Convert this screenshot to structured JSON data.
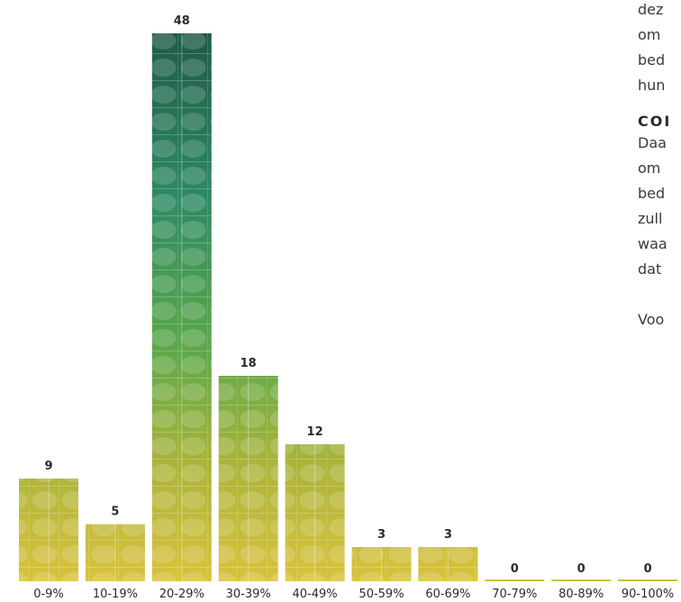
{
  "chart_data": {
    "type": "bar",
    "categories": [
      "0-9%",
      "10-19%",
      "20-29%",
      "30-39%",
      "40-49%",
      "50-59%",
      "60-69%",
      "70-79%",
      "80-89%",
      "90-100%"
    ],
    "values": [
      9,
      5,
      48,
      18,
      12,
      3,
      3,
      0,
      0,
      0
    ],
    "data_labels": [
      "9",
      "5",
      "48",
      "18",
      "12",
      "3",
      "3",
      "0",
      "0",
      "0"
    ],
    "title": "",
    "xlabel": "",
    "ylabel": "",
    "ylim": [
      0,
      48
    ],
    "grid": false,
    "legend": "none",
    "colors": {
      "top": "#1f5b47",
      "upper_mid": "#2e8a63",
      "mid": "#8ab83c",
      "lower": "#c6b23a",
      "base": "#d9c23d",
      "zero_line": "#d2bf38",
      "label": "#2b2b2b"
    }
  },
  "side_text": {
    "lines": [
      "dez",
      "om",
      "bed",
      "hun"
    ],
    "heading": "COI",
    "lines2": [
      "Daa",
      "om",
      "bed",
      "zull",
      "waa",
      "dat"
    ],
    "footer": "Voo"
  }
}
